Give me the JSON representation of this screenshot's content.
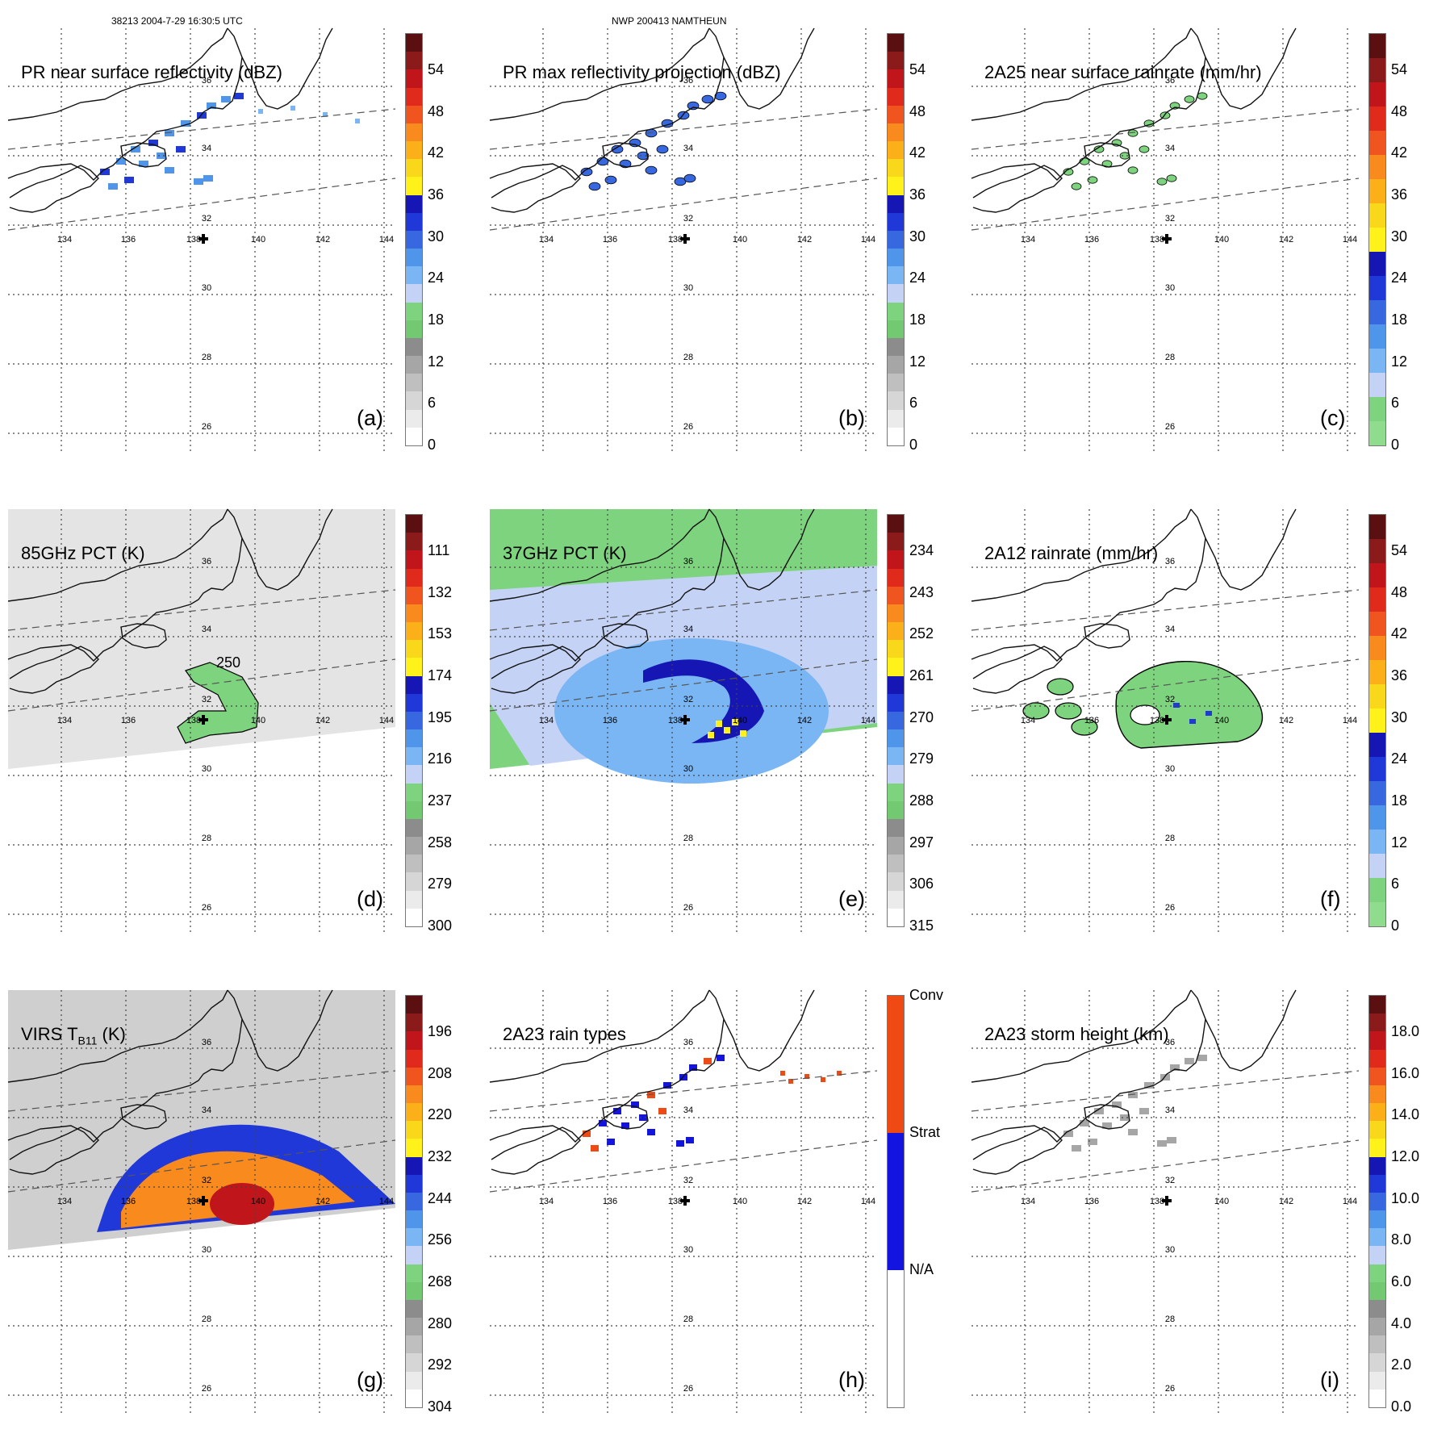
{
  "header": {
    "orbit": "38213 2004-7-29 16:30:5 UTC",
    "storm": "NWP 200413 NAMTHEUN"
  },
  "map": {
    "lon_labels": [
      "134",
      "136",
      "138",
      "140",
      "142",
      "144"
    ],
    "lat_labels": [
      "36",
      "34",
      "32",
      "30",
      "28",
      "26"
    ],
    "contour_label_250": "250"
  },
  "panels": [
    {
      "id": "a",
      "title": "PR near surface reflectivity (dBZ)",
      "label": "(a)",
      "ticks": [
        "54",
        "48",
        "42",
        "36",
        "30",
        "24",
        "18",
        "12",
        "6",
        "0"
      ],
      "colors": [
        "#5a1010",
        "#8b1a1a",
        "#c0161b",
        "#e02a1c",
        "#f05520",
        "#f88a1e",
        "#fbb019",
        "#f9d71a",
        "#fff21a",
        "#1616b4",
        "#2138d8",
        "#3868e0",
        "#4f95ea",
        "#7ab6f4",
        "#c4d2f5",
        "#7ed47e",
        "#72c972",
        "#8c8c8c",
        "#a6a6a6",
        "#bfbfbf",
        "#d6d6d6",
        "#ebebeb",
        "#ffffff"
      ]
    },
    {
      "id": "b",
      "title": "PR max reflectivity projection (dBZ)",
      "label": "(b)",
      "ticks": [
        "54",
        "48",
        "42",
        "36",
        "30",
        "24",
        "18",
        "12",
        "6",
        "0"
      ],
      "colors": [
        "#5a1010",
        "#8b1a1a",
        "#c0161b",
        "#e02a1c",
        "#f05520",
        "#f88a1e",
        "#fbb019",
        "#f9d71a",
        "#fff21a",
        "#1616b4",
        "#2138d8",
        "#3868e0",
        "#4f95ea",
        "#7ab6f4",
        "#c4d2f5",
        "#7ed47e",
        "#72c972",
        "#8c8c8c",
        "#a6a6a6",
        "#bfbfbf",
        "#d6d6d6",
        "#ebebeb",
        "#ffffff"
      ]
    },
    {
      "id": "c",
      "title": "2A25 near surface rainrate (mm/hr)",
      "label": "(c)",
      "ticks": [
        "54",
        "48",
        "42",
        "36",
        "30",
        "24",
        "18",
        "12",
        "6",
        "0"
      ],
      "colors": [
        "#5a1010",
        "#8b1a1a",
        "#c0161b",
        "#e02a1c",
        "#f05520",
        "#f88a1e",
        "#fbb019",
        "#f9d71a",
        "#fff21a",
        "#1616b4",
        "#2138d8",
        "#3868e0",
        "#4f95ea",
        "#7ab6f4",
        "#c4d2f5",
        "#7ed47e",
        "#8fdc8f"
      ]
    },
    {
      "id": "d",
      "title": "85GHz PCT (K)",
      "label": "(d)",
      "ticks": [
        "111",
        "132",
        "153",
        "174",
        "195",
        "216",
        "237",
        "258",
        "279",
        "300"
      ],
      "colors": [
        "#5a1010",
        "#8b1a1a",
        "#c0161b",
        "#e02a1c",
        "#f05520",
        "#f88a1e",
        "#fbb019",
        "#f9d71a",
        "#fff21a",
        "#1616b4",
        "#2138d8",
        "#3868e0",
        "#4f95ea",
        "#7ab6f4",
        "#c4d2f5",
        "#7ed47e",
        "#72c972",
        "#8c8c8c",
        "#a6a6a6",
        "#bfbfbf",
        "#d6d6d6",
        "#ebebeb",
        "#ffffff"
      ]
    },
    {
      "id": "e",
      "title": "37GHz PCT (K)",
      "label": "(e)",
      "ticks": [
        "234",
        "243",
        "252",
        "261",
        "270",
        "279",
        "288",
        "297",
        "306",
        "315"
      ],
      "colors": [
        "#5a1010",
        "#8b1a1a",
        "#c0161b",
        "#e02a1c",
        "#f05520",
        "#f88a1e",
        "#fbb019",
        "#f9d71a",
        "#fff21a",
        "#1616b4",
        "#2138d8",
        "#3868e0",
        "#4f95ea",
        "#7ab6f4",
        "#c4d2f5",
        "#7ed47e",
        "#72c972",
        "#8c8c8c",
        "#a6a6a6",
        "#bfbfbf",
        "#d6d6d6",
        "#ebebeb",
        "#ffffff"
      ]
    },
    {
      "id": "f",
      "title": "2A12 rainrate (mm/hr)",
      "label": "(f)",
      "ticks": [
        "54",
        "48",
        "42",
        "36",
        "30",
        "24",
        "18",
        "12",
        "6",
        "0"
      ],
      "colors": [
        "#5a1010",
        "#8b1a1a",
        "#c0161b",
        "#e02a1c",
        "#f05520",
        "#f88a1e",
        "#fbb019",
        "#f9d71a",
        "#fff21a",
        "#1616b4",
        "#2138d8",
        "#3868e0",
        "#4f95ea",
        "#7ab6f4",
        "#c4d2f5",
        "#7ed47e",
        "#8fdc8f"
      ]
    },
    {
      "id": "g",
      "title": "VIRS T",
      "title_sub": "B11",
      "title_tail": " (K)",
      "label": "(g)",
      "ticks": [
        "196",
        "208",
        "220",
        "232",
        "244",
        "256",
        "268",
        "280",
        "292",
        "304"
      ],
      "colors": [
        "#5a1010",
        "#8b1a1a",
        "#c0161b",
        "#e02a1c",
        "#f05520",
        "#f88a1e",
        "#fbb019",
        "#f9d71a",
        "#fff21a",
        "#1616b4",
        "#2138d8",
        "#3868e0",
        "#4f95ea",
        "#7ab6f4",
        "#c4d2f5",
        "#7ed47e",
        "#72c972",
        "#8c8c8c",
        "#a6a6a6",
        "#bfbfbf",
        "#d6d6d6",
        "#ebebeb",
        "#ffffff"
      ]
    },
    {
      "id": "h",
      "title": "2A23 rain types",
      "label": "(h)",
      "ticks": [
        "Conv",
        "Strat",
        "N/A"
      ],
      "colors": [
        "#f04a14",
        "#1414e0",
        "#ffffff"
      ]
    },
    {
      "id": "i",
      "title": "2A23 storm height (km)",
      "label": "(i)",
      "ticks": [
        "18.0",
        "16.0",
        "14.0",
        "12.0",
        "10.0",
        "8.0",
        "6.0",
        "4.0",
        "2.0",
        "0.0"
      ],
      "colors": [
        "#5a1010",
        "#8b1a1a",
        "#c0161b",
        "#e02a1c",
        "#f05520",
        "#f88a1e",
        "#fbb019",
        "#f9d71a",
        "#fff21a",
        "#1616b4",
        "#2138d8",
        "#3868e0",
        "#4f95ea",
        "#7ab6f4",
        "#c4d2f5",
        "#7ed47e",
        "#72c972",
        "#8c8c8c",
        "#a6a6a6",
        "#bfbfbf",
        "#d6d6d6",
        "#ebebeb",
        "#ffffff"
      ]
    }
  ]
}
